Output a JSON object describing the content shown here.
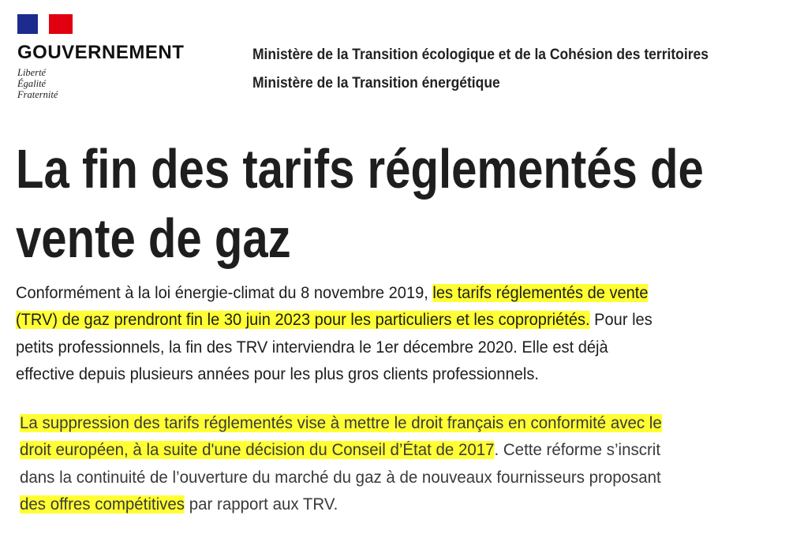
{
  "header": {
    "logo": {
      "name": "GOUVERNEMENT",
      "motto": [
        "Liberté",
        "Égalité",
        "Fraternité"
      ],
      "colors": {
        "blue": "#1d2b8f",
        "red": "#e1000f"
      }
    },
    "ministries": [
      "Ministère de la Transition écologique et de la Cohésion des territoires",
      "Ministère de la Transition énergétique"
    ]
  },
  "title_lines": [
    "La fin des tarifs réglementés de",
    "vente de gaz"
  ],
  "highlight_color": "#ffff33",
  "paragraphs": [
    [
      [
        {
          "t": "Conformément à la loi énergie-climat du 8 novembre 2019, "
        },
        {
          "t": "les tarifs réglementés de vente",
          "hl": true
        }
      ],
      [
        {
          "t": "(TRV) de gaz prendront fin le 30 juin 2023 pour les particuliers et les copropriétés.",
          "hl": true
        },
        {
          "t": " Pour les"
        }
      ],
      [
        {
          "t": "petits professionnels, la fin des TRV interviendra le 1er décembre 2020. Elle est déjà"
        }
      ],
      [
        {
          "t": "effective depuis plusieurs années pour les plus gros clients professionnels."
        }
      ]
    ],
    [
      [
        {
          "t": "La suppression des tarifs réglementés vise à mettre le droit français en conformité avec le",
          "hl": true
        }
      ],
      [
        {
          "t": "droit européen, à la suite d'une décision du Conseil d’État de 2017",
          "hl": true
        },
        {
          "t": ". Cette réforme s’inscrit"
        }
      ],
      [
        {
          "t": "dans la continuité de l’ouverture du marché du gaz à de nouveaux fournisseurs proposant"
        }
      ],
      [
        {
          "t": "des offres compétitives",
          "hl": true
        },
        {
          "t": " par rapport aux TRV."
        }
      ]
    ]
  ]
}
